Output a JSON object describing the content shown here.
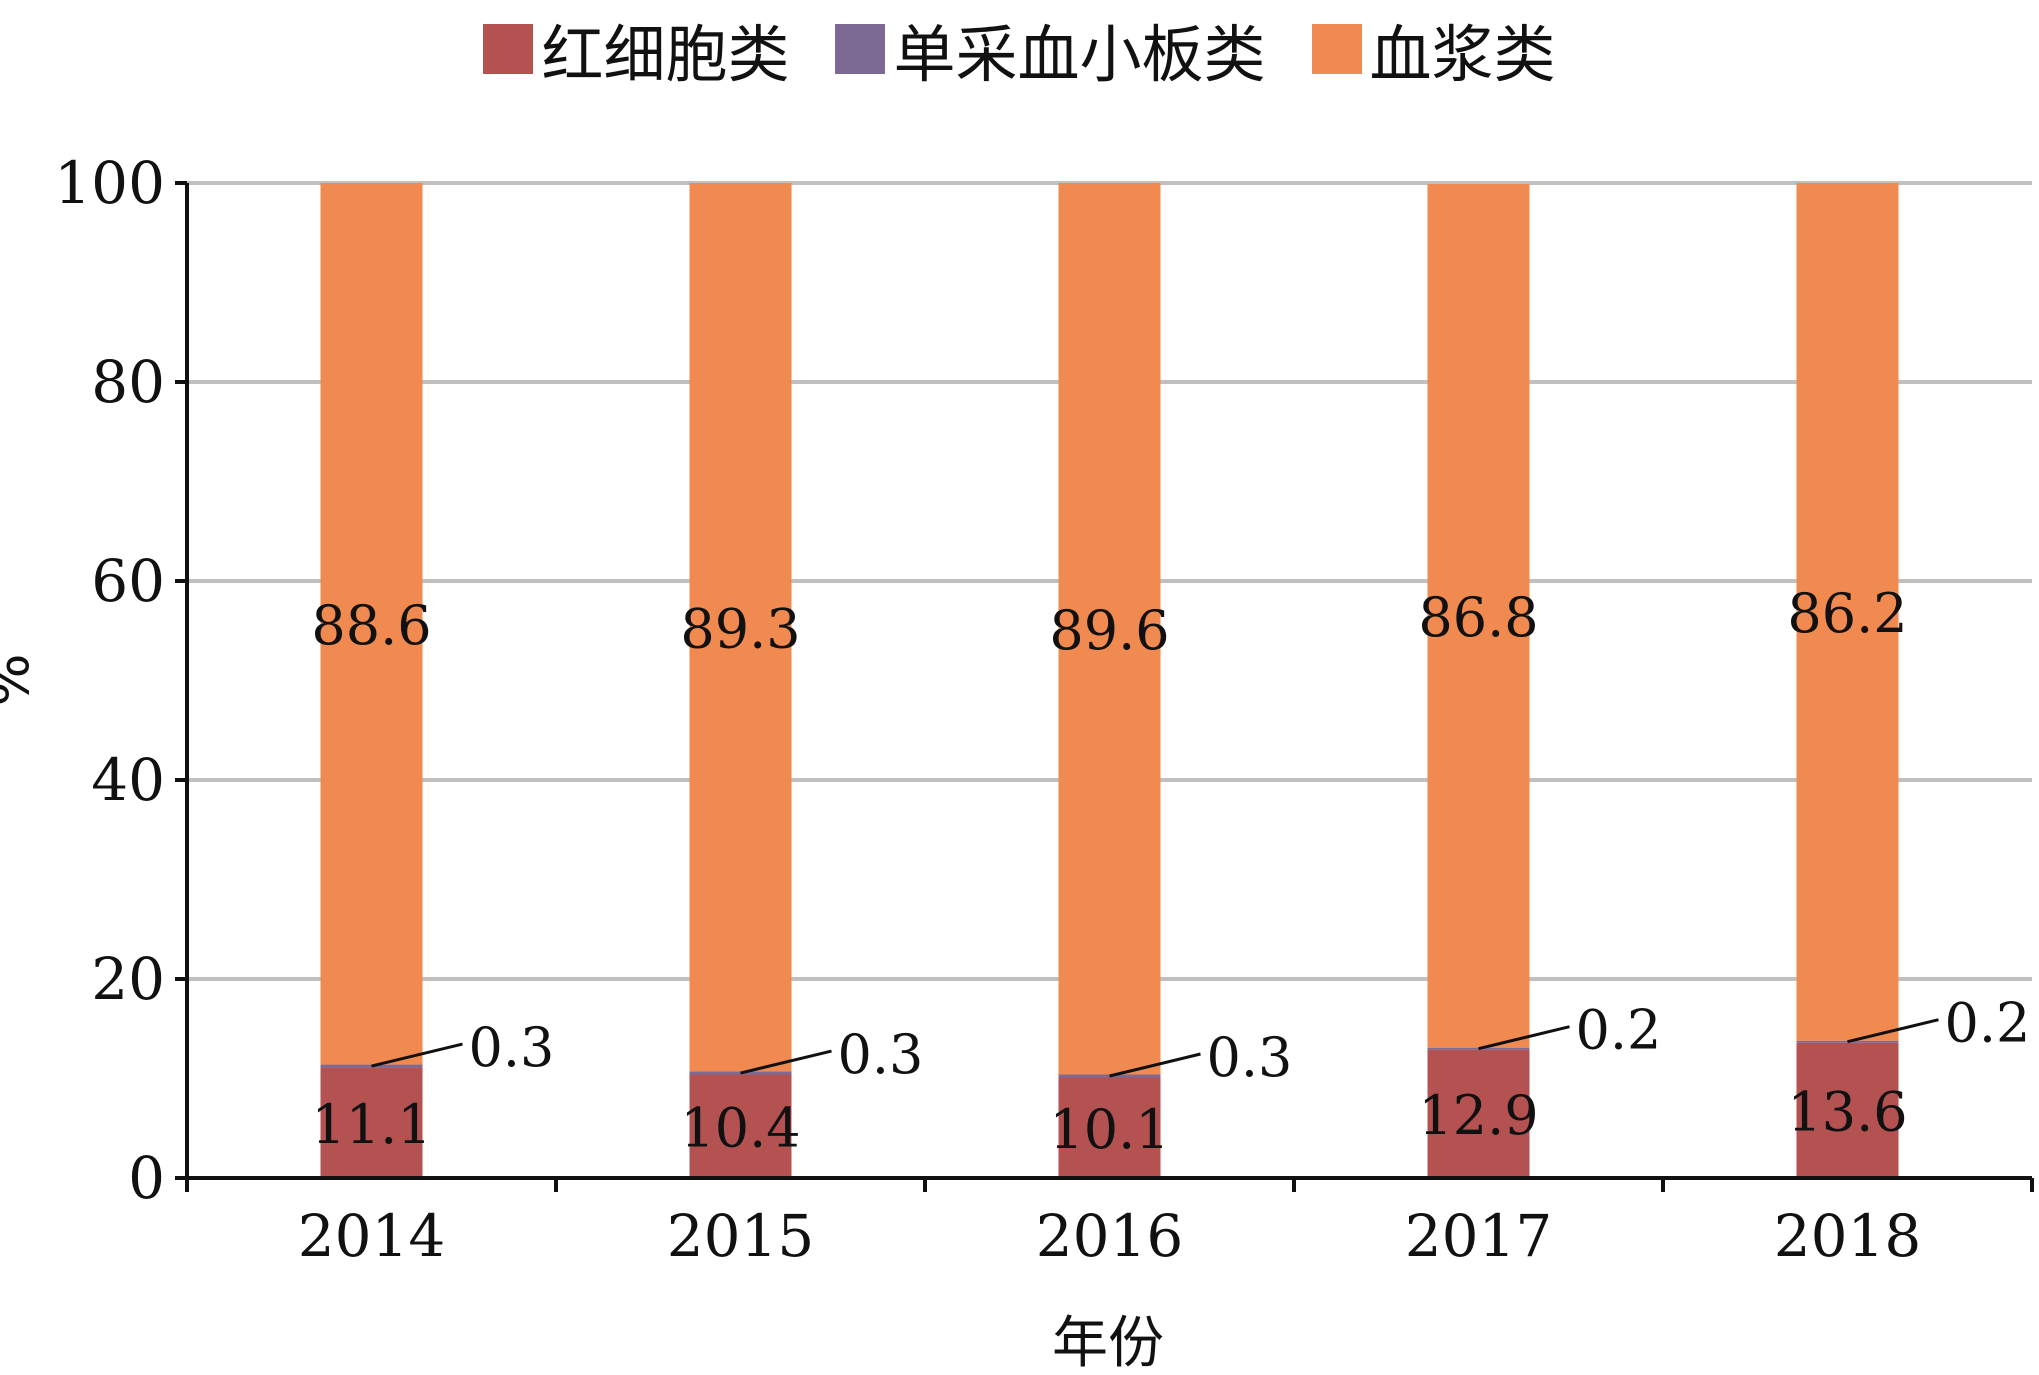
{
  "legend": [
    {
      "label": "红细胞类",
      "color": "#b35251"
    },
    {
      "label": "单采血小板类",
      "color": "#7d6a94"
    },
    {
      "label": "血浆类",
      "color": "#f08a50"
    }
  ],
  "chart_data": {
    "type": "bar",
    "stacked": true,
    "categories": [
      "2014",
      "2015",
      "2016",
      "2017",
      "2018"
    ],
    "series": [
      {
        "name": "红细胞类",
        "values": [
          11.1,
          10.4,
          10.1,
          12.9,
          13.6
        ],
        "color": "#b35251"
      },
      {
        "name": "单采血小板类",
        "values": [
          0.3,
          0.3,
          0.3,
          0.2,
          0.2
        ],
        "color": "#7d6a94"
      },
      {
        "name": "血浆类",
        "values": [
          88.6,
          89.3,
          89.6,
          86.8,
          86.2
        ],
        "color": "#f08a50"
      }
    ],
    "ylim": [
      0,
      100
    ],
    "yticks": [
      0,
      20,
      40,
      60,
      80,
      100
    ],
    "ylabel": "%",
    "xlabel": "年份",
    "grid": true,
    "legend_position": "top"
  }
}
